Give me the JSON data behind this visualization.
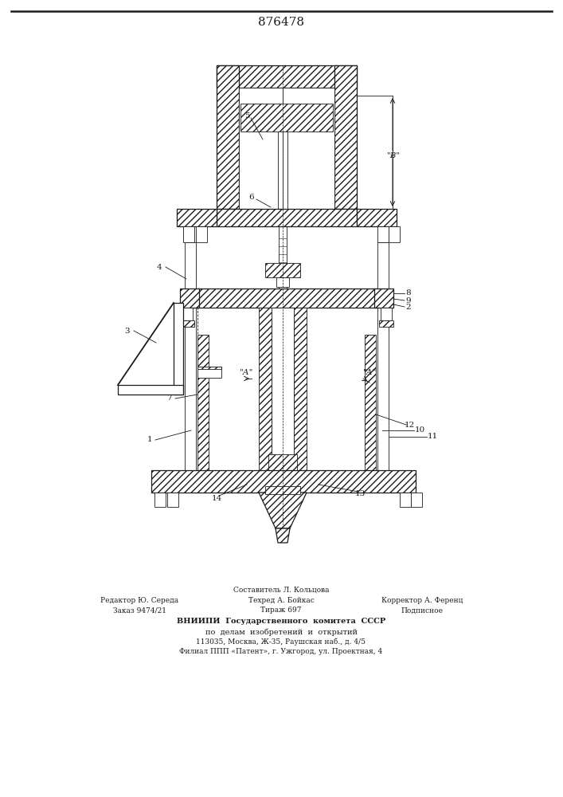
{
  "title": "876478",
  "bg_color": "#ffffff",
  "lc": "#1a1a1a",
  "fig_w": 7.07,
  "fig_h": 10.0,
  "dpi": 100,
  "footer": {
    "line1_center": "Составитель Л. Кольцова",
    "line2_left": "Редактор Ю. Середа",
    "line2_center": "Техред А. Бойкас",
    "line2_right": "Корректор А. Ференц",
    "line3_left": "Заказ 9474/21",
    "line3_center": "Тираж 697",
    "line3_right": "Подписное",
    "line4": "ВНИИПИ  Государственного  комитета  СССР",
    "line5": "по  делам  изобретений  и  открытий",
    "line6": "113035, Москва, Ж-35, Раушская наб., д. 4/5",
    "line7": "Филиал ППП «Патент», г. Ужгород, ул. Проектная, 4"
  }
}
